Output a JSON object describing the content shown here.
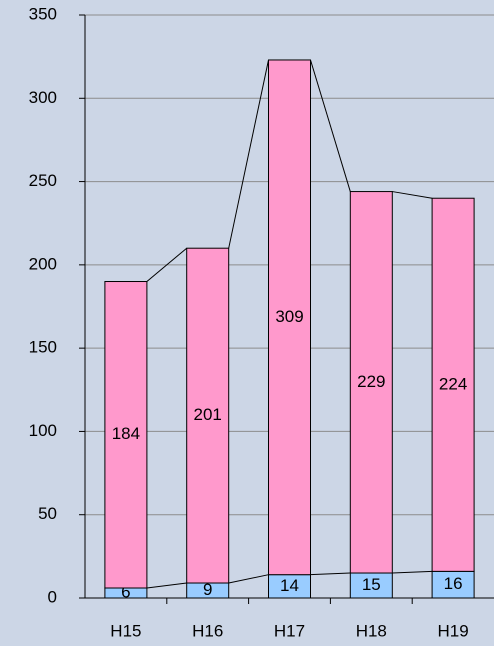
{
  "chart_data": {
    "type": "stacked_bar",
    "categories": [
      "H15",
      "H16",
      "H17",
      "H18",
      "H19"
    ],
    "series": [
      {
        "color": "#99ccff",
        "values": [
          6,
          9,
          14,
          15,
          16
        ]
      },
      {
        "color": "#ff99cc",
        "values": [
          184,
          201,
          309,
          229,
          224
        ]
      }
    ],
    "ylim": [
      0,
      350
    ],
    "yticks": [
      0,
      50,
      100,
      150,
      200,
      250,
      300,
      350
    ],
    "grid": true
  }
}
